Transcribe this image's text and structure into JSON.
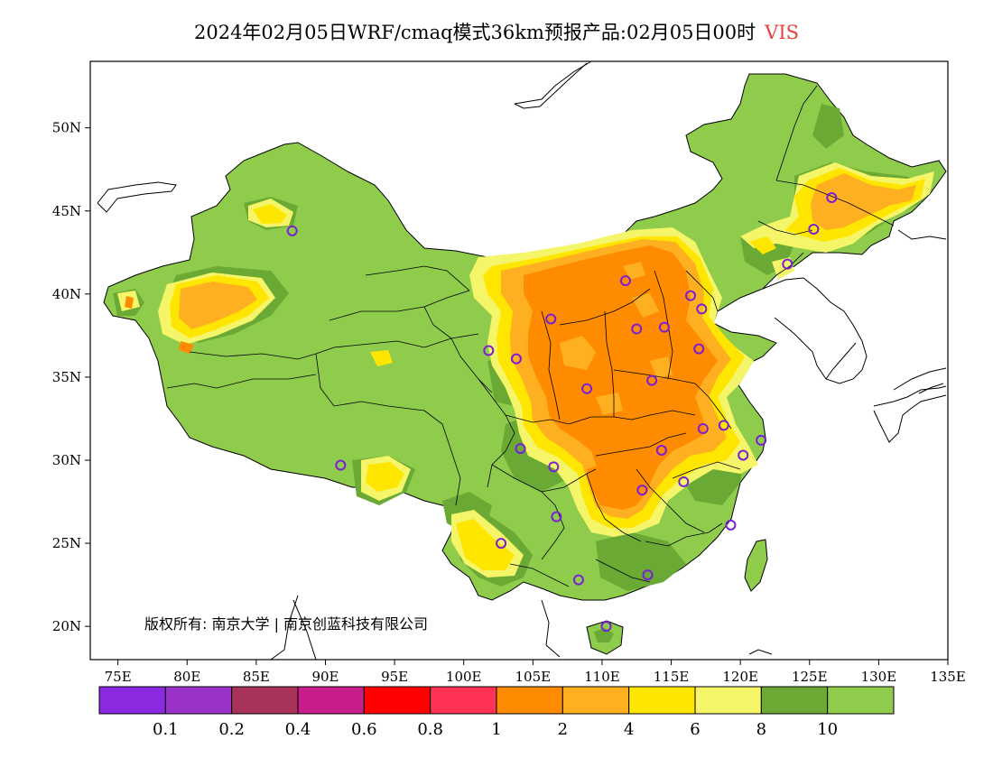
{
  "title": {
    "text": "2024年02月05日WRF/cmaq模式36km预报产品:02月05日00时",
    "variable": "VIS",
    "variable_color": "#e8413c"
  },
  "chart_data": {
    "type": "heatmap",
    "title": "2024年02月05日WRF/cmaq模式36km预报产品:02月05日00时 VIS",
    "x_axis": {
      "range": [
        73,
        135
      ],
      "ticks": [
        75,
        80,
        85,
        90,
        95,
        100,
        105,
        110,
        115,
        120,
        125,
        130,
        135
      ],
      "tick_labels": [
        "75E",
        "80E",
        "85E",
        "90E",
        "95E",
        "100E",
        "105E",
        "110E",
        "115E",
        "120E",
        "125E",
        "130E",
        "135E"
      ]
    },
    "y_axis": {
      "range": [
        18,
        54
      ],
      "ticks": [
        20,
        25,
        30,
        35,
        40,
        45,
        50
      ],
      "tick_labels": [
        "20N",
        "25N",
        "30N",
        "35N",
        "40N",
        "45N",
        "50N"
      ]
    },
    "colorbar": {
      "colors": [
        "#8a2be2",
        "#9b32c8",
        "#a8325a",
        "#c81e8c",
        "#ff0000",
        "#ff3355",
        "#ff8c00",
        "#ffb020",
        "#ffe600",
        "#f5f56a",
        "#6aaa34",
        "#8fcc4c"
      ],
      "labels": [
        "0.1",
        "0.2",
        "0.4",
        "0.6",
        "0.8",
        "1",
        "2",
        "4",
        "6",
        "8",
        "10"
      ]
    },
    "cities": [
      {
        "lon": 87.6,
        "lat": 43.8
      },
      {
        "lon": 101.8,
        "lat": 36.6
      },
      {
        "lon": 103.8,
        "lat": 36.1
      },
      {
        "lon": 106.3,
        "lat": 38.5
      },
      {
        "lon": 111.7,
        "lat": 40.8
      },
      {
        "lon": 112.5,
        "lat": 37.9
      },
      {
        "lon": 114.5,
        "lat": 38.0
      },
      {
        "lon": 116.4,
        "lat": 39.9
      },
      {
        "lon": 117.2,
        "lat": 39.1
      },
      {
        "lon": 117.0,
        "lat": 36.7
      },
      {
        "lon": 113.6,
        "lat": 34.8
      },
      {
        "lon": 108.9,
        "lat": 34.3
      },
      {
        "lon": 104.1,
        "lat": 30.7
      },
      {
        "lon": 106.5,
        "lat": 29.6
      },
      {
        "lon": 114.3,
        "lat": 30.6
      },
      {
        "lon": 117.3,
        "lat": 31.9
      },
      {
        "lon": 118.8,
        "lat": 32.1
      },
      {
        "lon": 121.5,
        "lat": 31.2
      },
      {
        "lon": 120.2,
        "lat": 30.3
      },
      {
        "lon": 115.9,
        "lat": 28.7
      },
      {
        "lon": 112.9,
        "lat": 28.2
      },
      {
        "lon": 106.7,
        "lat": 26.6
      },
      {
        "lon": 102.7,
        "lat": 25.0
      },
      {
        "lon": 108.3,
        "lat": 22.8
      },
      {
        "lon": 113.3,
        "lat": 23.1
      },
      {
        "lon": 119.3,
        "lat": 26.1
      },
      {
        "lon": 110.3,
        "lat": 20.0
      },
      {
        "lon": 91.1,
        "lat": 29.7
      },
      {
        "lon": 123.4,
        "lat": 41.8
      },
      {
        "lon": 125.3,
        "lat": 43.9
      },
      {
        "lon": 126.6,
        "lat": 45.8
      }
    ]
  },
  "copyright": "版权所有: 南京大学 | 南京创蓝科技有限公司"
}
